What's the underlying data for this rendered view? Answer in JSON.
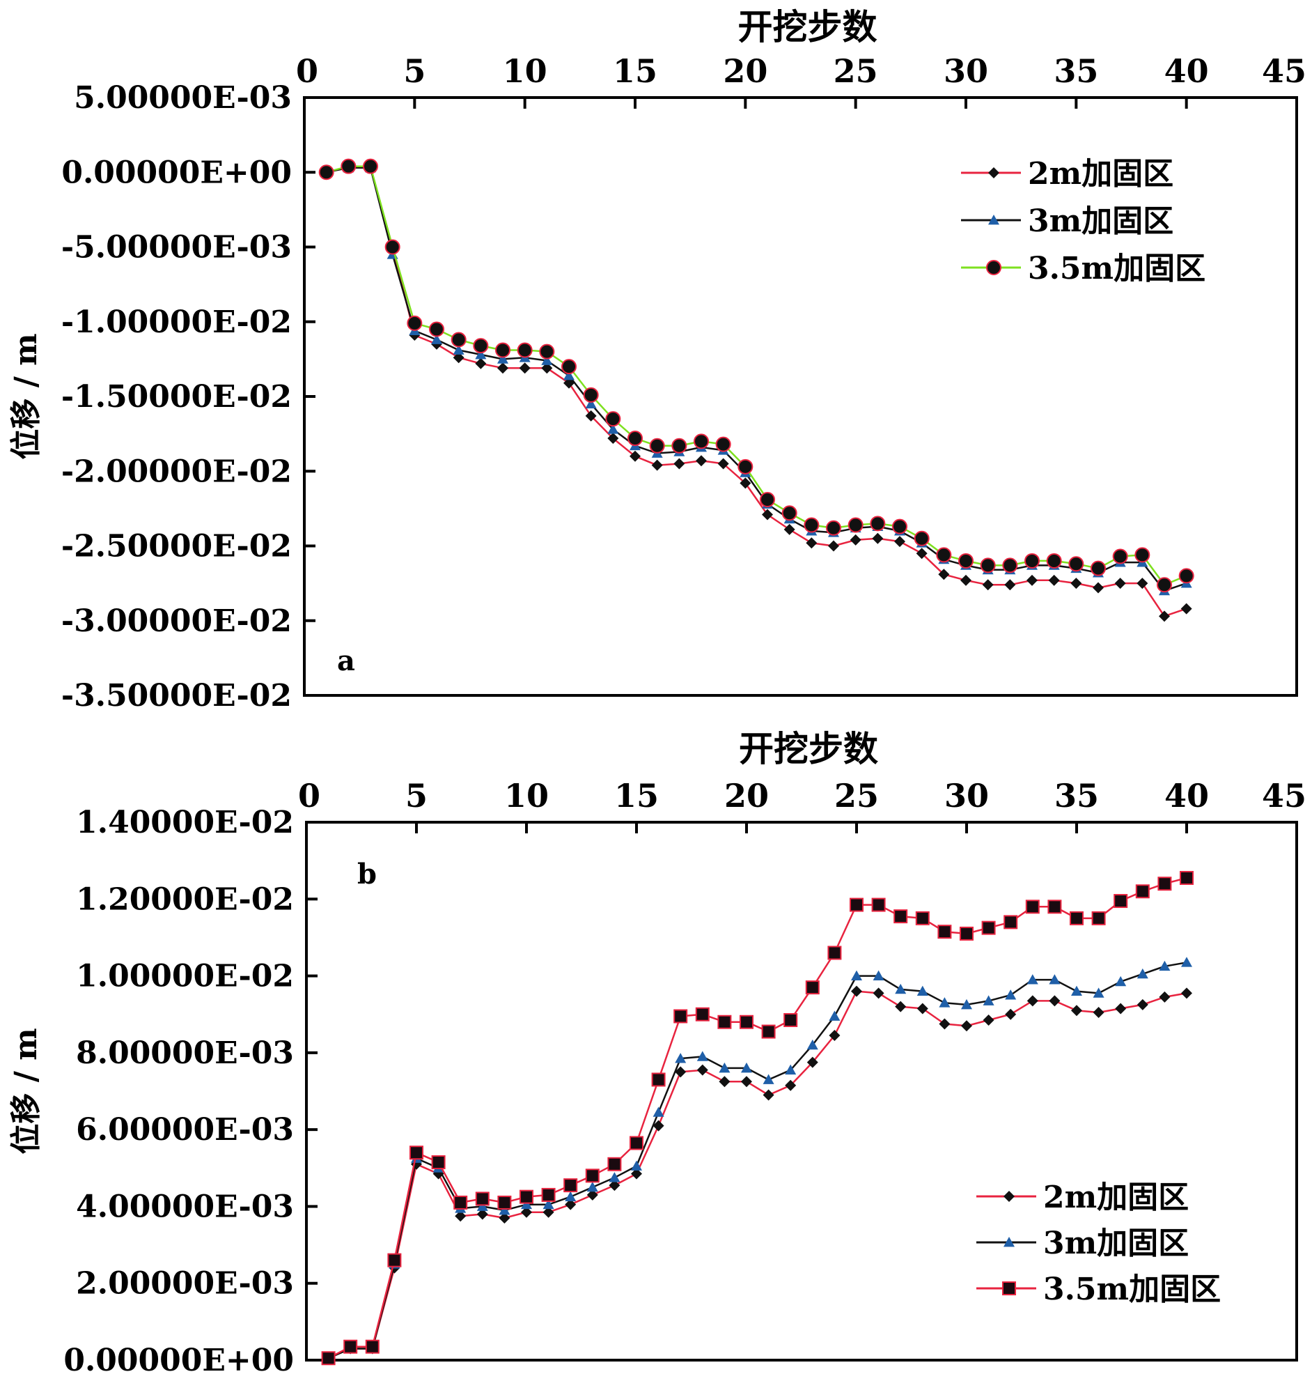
{
  "chart_data": [
    {
      "type": "line",
      "panel_label": "a",
      "xlabel": "开挖步数",
      "ylabel": "位移 / m",
      "xlim": [
        0,
        45
      ],
      "x_ticks": [
        "0",
        "5",
        "10",
        "15",
        "20",
        "25",
        "30",
        "35",
        "40",
        "45"
      ],
      "ylim": [
        -0.035,
        0.005
      ],
      "y_ticks": [
        "5.00000E-03",
        "0.00000E+00",
        "-5.00000E-03",
        "-1.00000E-02",
        "-1.50000E-02",
        "-2.00000E-02",
        "-2.50000E-02",
        "-3.00000E-02",
        "-3.50000E-02"
      ],
      "legend_position": "top-right",
      "x": [
        1,
        2,
        3,
        4,
        5,
        6,
        7,
        8,
        9,
        10,
        11,
        12,
        13,
        14,
        15,
        16,
        17,
        18,
        19,
        20,
        21,
        22,
        23,
        24,
        25,
        26,
        27,
        28,
        29,
        30,
        31,
        32,
        33,
        34,
        35,
        36,
        37,
        38,
        39,
        40
      ],
      "series": [
        {
          "name": "2m加固区",
          "line_color": "#e8233f",
          "marker": "diamond",
          "marker_color": "#111111",
          "values": [
            0.0,
            0.0003,
            0.0003,
            -0.005,
            -0.0109,
            -0.0115,
            -0.0124,
            -0.0128,
            -0.0131,
            -0.0131,
            -0.0131,
            -0.0141,
            -0.0163,
            -0.0178,
            -0.019,
            -0.0196,
            -0.0195,
            -0.0193,
            -0.0195,
            -0.0208,
            -0.0229,
            -0.0239,
            -0.0248,
            -0.025,
            -0.0246,
            -0.0245,
            -0.0247,
            -0.0255,
            -0.0269,
            -0.0273,
            -0.0276,
            -0.0276,
            -0.0273,
            -0.0273,
            -0.0275,
            -0.0278,
            -0.0275,
            -0.0275,
            -0.0297,
            -0.0292
          ]
        },
        {
          "name": "3m加固区",
          "line_color": "#111111",
          "marker": "triangle",
          "marker_color": "#1f5fa8",
          "values": [
            0.0,
            0.0003,
            0.0003,
            -0.0055,
            -0.0106,
            -0.0112,
            -0.0119,
            -0.0122,
            -0.0125,
            -0.0124,
            -0.0126,
            -0.0136,
            -0.0155,
            -0.0172,
            -0.0183,
            -0.0188,
            -0.0187,
            -0.0184,
            -0.0186,
            -0.0201,
            -0.0222,
            -0.0232,
            -0.024,
            -0.0241,
            -0.0238,
            -0.0237,
            -0.024,
            -0.0248,
            -0.0259,
            -0.0263,
            -0.0266,
            -0.0266,
            -0.0263,
            -0.0263,
            -0.0265,
            -0.0268,
            -0.0261,
            -0.0261,
            -0.028,
            -0.0275
          ]
        },
        {
          "name": "3.5m加固区",
          "line_color": "#7ee01f",
          "marker": "circle",
          "marker_color": "#111111",
          "marker_edge": "#e8233f",
          "values": [
            0.0,
            0.0004,
            0.0004,
            -0.005,
            -0.0101,
            -0.0105,
            -0.0112,
            -0.0116,
            -0.0119,
            -0.0119,
            -0.012,
            -0.013,
            -0.0149,
            -0.0165,
            -0.0178,
            -0.0183,
            -0.0183,
            -0.018,
            -0.0182,
            -0.0197,
            -0.0219,
            -0.0228,
            -0.0236,
            -0.0238,
            -0.0236,
            -0.0235,
            -0.0237,
            -0.0245,
            -0.0256,
            -0.026,
            -0.0263,
            -0.0263,
            -0.026,
            -0.026,
            -0.0262,
            -0.0265,
            -0.0257,
            -0.0256,
            -0.0276,
            -0.027
          ]
        }
      ]
    },
    {
      "type": "line",
      "panel_label": "b",
      "xlabel": "开挖步数",
      "ylabel": "位移 / m",
      "xlim": [
        0,
        45
      ],
      "x_ticks": [
        "0",
        "5",
        "10",
        "15",
        "20",
        "25",
        "30",
        "35",
        "40",
        "45"
      ],
      "ylim": [
        0,
        0.014
      ],
      "y_ticks": [
        "1.40000E-02",
        "1.20000E-02",
        "1.00000E-02",
        "8.00000E-03",
        "6.00000E-03",
        "4.00000E-03",
        "2.00000E-03",
        "0.00000E+00"
      ],
      "legend_position": "bottom-right",
      "x": [
        1,
        2,
        3,
        4,
        5,
        6,
        7,
        8,
        9,
        10,
        11,
        12,
        13,
        14,
        15,
        16,
        17,
        18,
        19,
        20,
        21,
        22,
        23,
        24,
        25,
        26,
        27,
        28,
        29,
        30,
        31,
        32,
        33,
        34,
        35,
        36,
        37,
        38,
        39,
        40
      ],
      "series": [
        {
          "name": "2m加固区",
          "line_color": "#e8233f",
          "marker": "diamond",
          "marker_color": "#111111",
          "values": [
            5e-05,
            0.0003,
            0.0003,
            0.0024,
            0.0051,
            0.00485,
            0.00375,
            0.0038,
            0.0037,
            0.00385,
            0.00385,
            0.00405,
            0.0043,
            0.00455,
            0.00485,
            0.0061,
            0.0075,
            0.00755,
            0.00725,
            0.00725,
            0.0069,
            0.00715,
            0.00775,
            0.00845,
            0.0096,
            0.00955,
            0.0092,
            0.00915,
            0.00875,
            0.0087,
            0.00885,
            0.009,
            0.00935,
            0.00935,
            0.0091,
            0.00905,
            0.00915,
            0.00925,
            0.00945,
            0.00955
          ]
        },
        {
          "name": "3m加固区",
          "line_color": "#111111",
          "marker": "triangle",
          "marker_color": "#1f5fa8",
          "values": [
            5e-05,
            0.0003,
            0.0003,
            0.0025,
            0.00525,
            0.005,
            0.00395,
            0.004,
            0.0039,
            0.00405,
            0.00405,
            0.00425,
            0.0045,
            0.00475,
            0.00505,
            0.00645,
            0.00785,
            0.0079,
            0.0076,
            0.0076,
            0.0073,
            0.00755,
            0.0082,
            0.00895,
            0.01,
            0.01,
            0.00965,
            0.0096,
            0.0093,
            0.00925,
            0.00935,
            0.0095,
            0.0099,
            0.0099,
            0.0096,
            0.00955,
            0.00985,
            0.01005,
            0.01025,
            0.01035
          ]
        },
        {
          "name": "3.5m加固区",
          "line_color": "#e8233f",
          "marker": "square",
          "marker_color": "#1a0a10",
          "marker_edge": "#e8233f",
          "values": [
            5e-05,
            0.00035,
            0.00035,
            0.0026,
            0.0054,
            0.00515,
            0.0041,
            0.0042,
            0.0041,
            0.00425,
            0.0043,
            0.00455,
            0.0048,
            0.0051,
            0.00565,
            0.0073,
            0.00895,
            0.009,
            0.0088,
            0.0088,
            0.00855,
            0.00885,
            0.0097,
            0.0106,
            0.01185,
            0.01185,
            0.01155,
            0.0115,
            0.01115,
            0.0111,
            0.01125,
            0.0114,
            0.0118,
            0.0118,
            0.0115,
            0.0115,
            0.01195,
            0.0122,
            0.0124,
            0.01255
          ]
        }
      ]
    }
  ]
}
